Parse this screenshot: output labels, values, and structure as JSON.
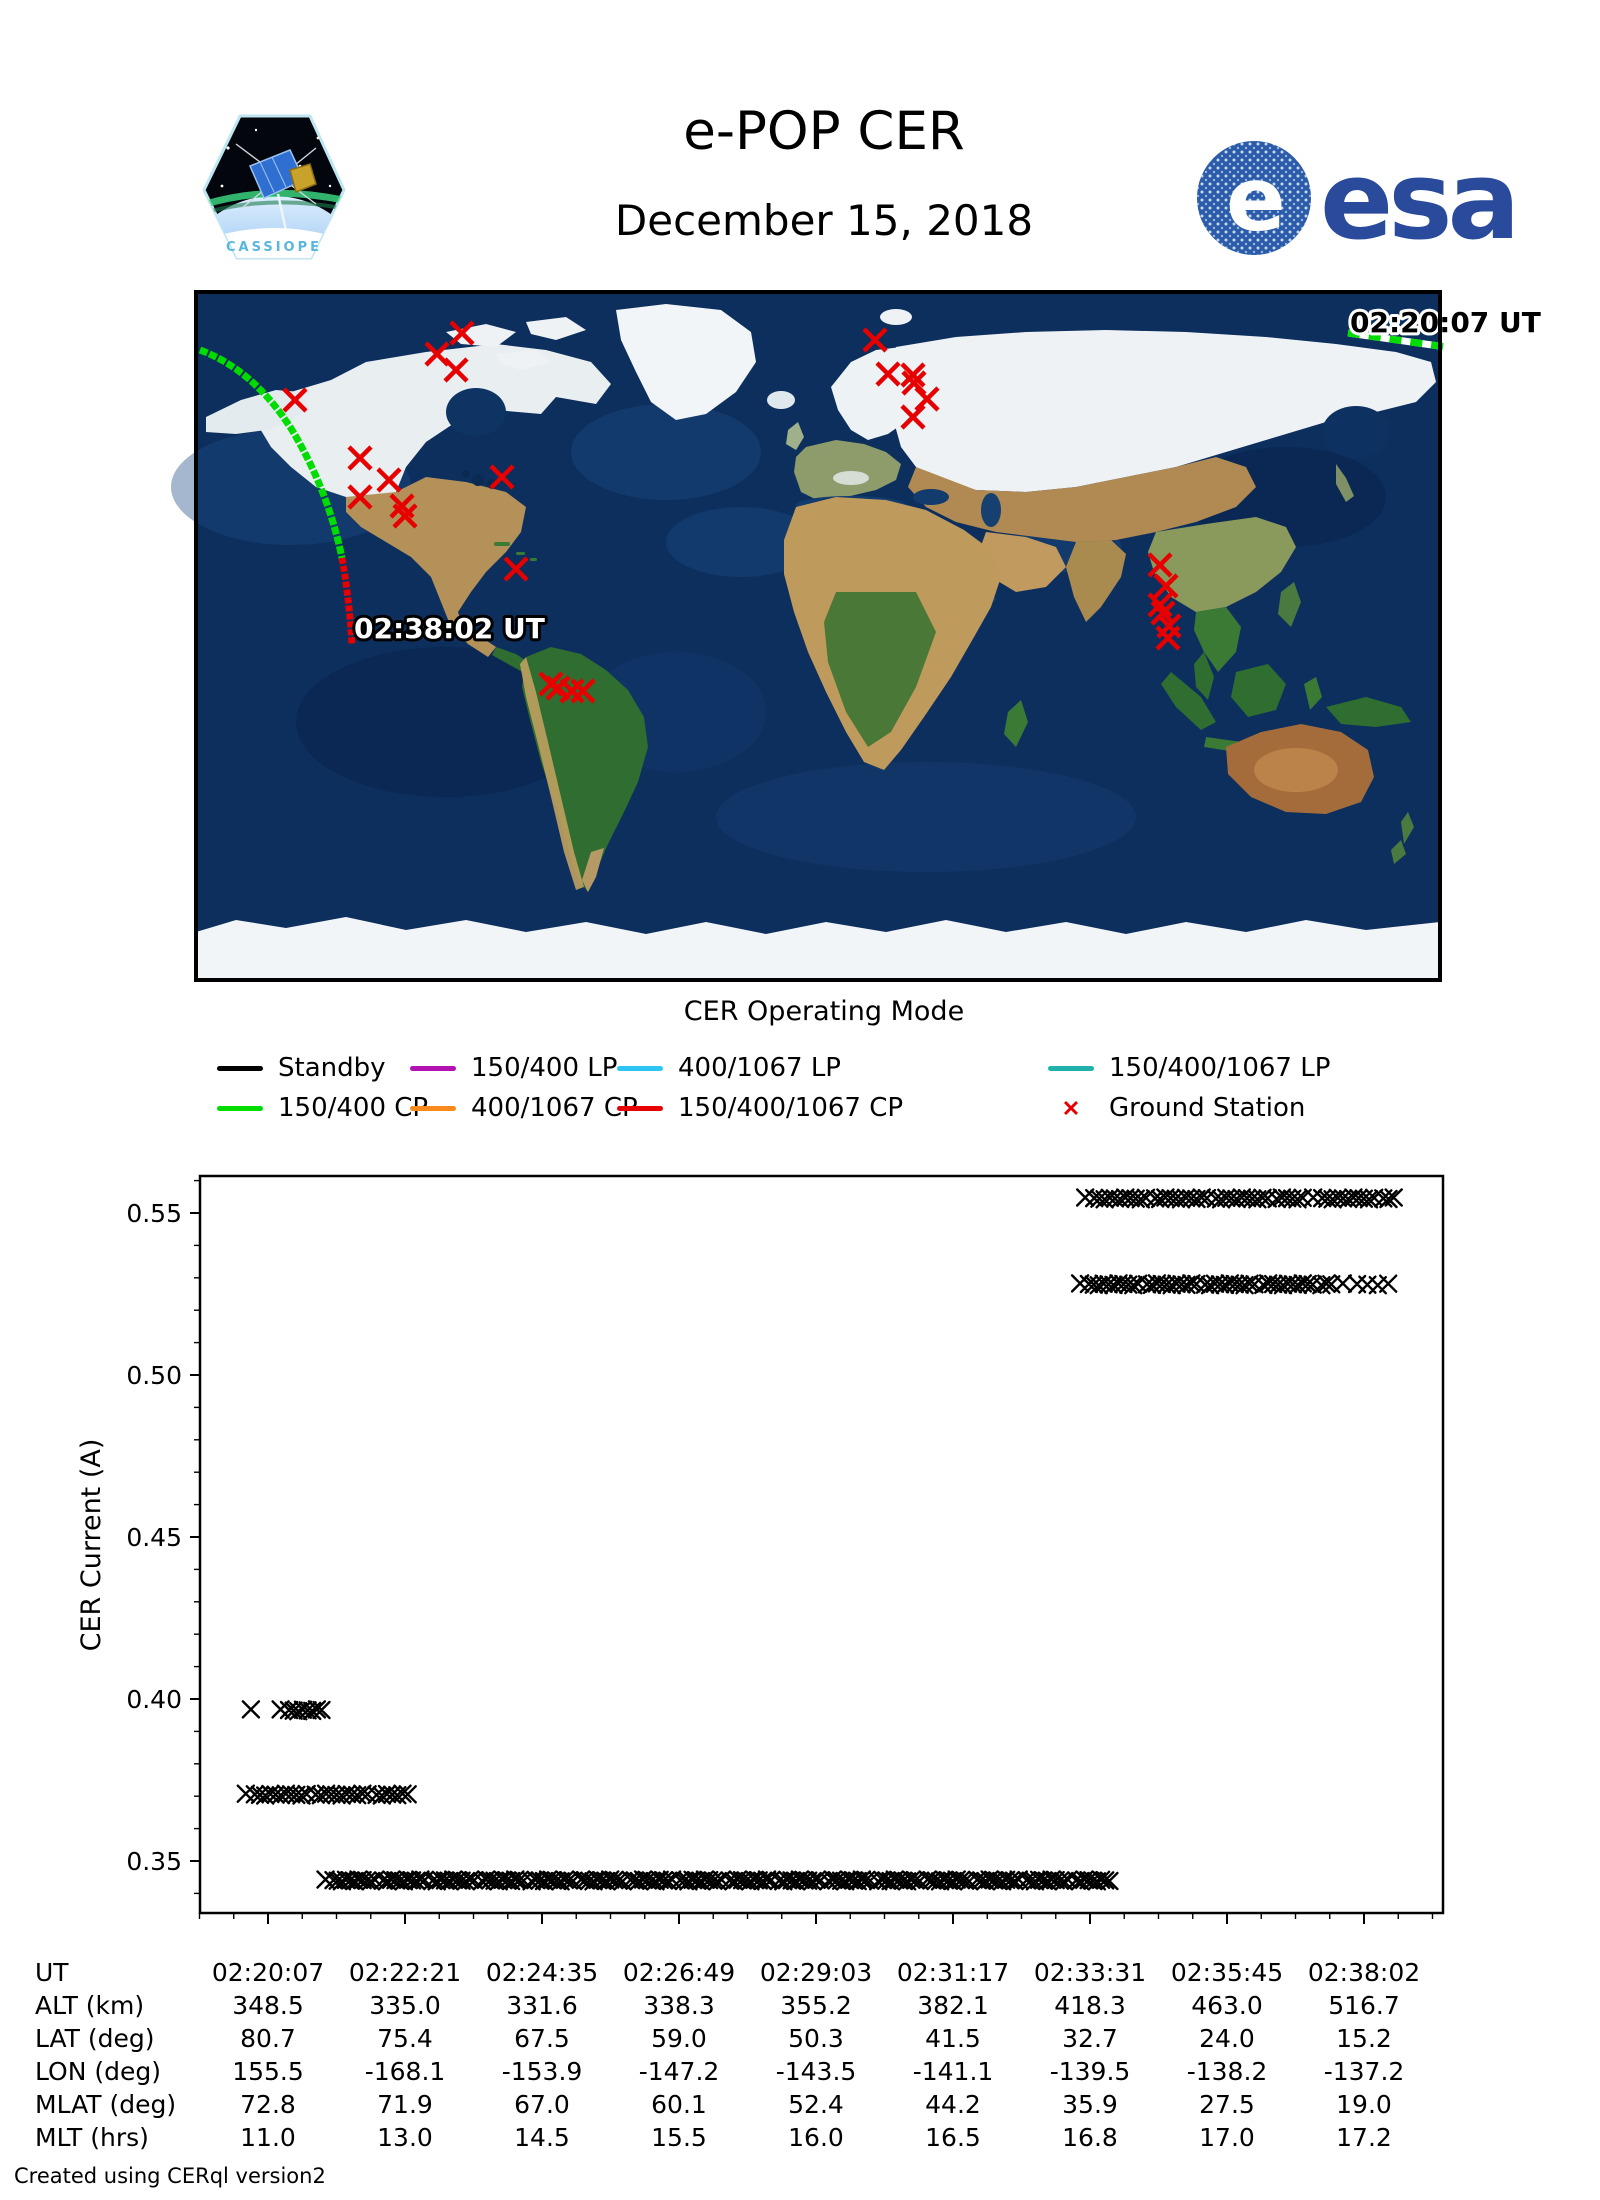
{
  "header": {
    "title": "e-POP CER",
    "date": "December 15, 2018",
    "cassiope_label": "CASSIOPE",
    "esa_wordmark": "esa"
  },
  "map": {
    "track_start_label": "02:20:07 UT",
    "track_end_label": "02:38:02 UT",
    "station_color": "#e60000",
    "track_colors": {
      "pass_150_400_cp": "#00dc00",
      "pass_150_400_1067_cp": "#e60000"
    },
    "ground_stations": [
      [
        266,
        41
      ],
      [
        241,
        62
      ],
      [
        260,
        78
      ],
      [
        99,
        108
      ],
      [
        164,
        166
      ],
      [
        193,
        188
      ],
      [
        164,
        205
      ],
      [
        206,
        214
      ],
      [
        209,
        224
      ],
      [
        306,
        185
      ],
      [
        320,
        277
      ],
      [
        355,
        392
      ],
      [
        362,
        396
      ],
      [
        376,
        399
      ],
      [
        387,
        399
      ],
      [
        679,
        48
      ],
      [
        692,
        82
      ],
      [
        717,
        83
      ],
      [
        718,
        91
      ],
      [
        731,
        107
      ],
      [
        717,
        125
      ],
      [
        964,
        273
      ],
      [
        970,
        294
      ],
      [
        964,
        313
      ],
      [
        967,
        321
      ],
      [
        973,
        334
      ],
      [
        972,
        346
      ]
    ]
  },
  "legend": {
    "title": "CER Operating Mode",
    "items": [
      {
        "label": "Standby",
        "color": "#000000",
        "type": "line"
      },
      {
        "label": "150/400 LP",
        "color": "#b312b3",
        "type": "line"
      },
      {
        "label": "400/1067 LP",
        "color": "#2ec5f5",
        "type": "line"
      },
      {
        "label": "150/400/1067 LP",
        "color": "#20b2aa",
        "type": "line"
      },
      {
        "label": "150/400 CP",
        "color": "#00dc00",
        "type": "line"
      },
      {
        "label": "400/1067 CP",
        "color": "#f98b1d",
        "type": "line"
      },
      {
        "label": "150/400/1067 CP",
        "color": "#e60000",
        "type": "line"
      },
      {
        "label": "Ground Station",
        "color": "#e60000",
        "type": "marker"
      }
    ]
  },
  "chart_data": {
    "type": "scatter",
    "marker": "x",
    "marker_color": "#000000",
    "title": "",
    "xlabel": "",
    "ylabel": "CER Current (A)",
    "ylim": [
      0.3335,
      0.5615
    ],
    "yticks": [
      0.35,
      0.4,
      0.45,
      0.5,
      0.55
    ],
    "x_tick_labels": [
      "02:20:07",
      "02:22:21",
      "02:24:35",
      "02:26:49",
      "02:29:03",
      "02:31:17",
      "02:33:31",
      "02:35:45",
      "02:38:02"
    ],
    "x_tick_interval_seconds": 134,
    "grid": false,
    "legend_position": "above-figure",
    "segments": [
      {
        "y": 0.3965,
        "t0": -15,
        "t1": -15,
        "count": 1
      },
      {
        "y": 0.3965,
        "t0": 14,
        "t1": 53,
        "count": 9
      },
      {
        "y": 0.3705,
        "t0": -20,
        "t1": 137,
        "count": 30
      },
      {
        "y": 0.344,
        "t0": 58,
        "t1": 824,
        "count": 175
      },
      {
        "y": 0.528,
        "t0": 796,
        "t1": 1039,
        "count": 48
      },
      {
        "y": 0.528,
        "t0": 1053,
        "t1": 1095,
        "count": 5
      },
      {
        "y": 0.5545,
        "t0": 801,
        "t1": 1012,
        "count": 40
      },
      {
        "y": 0.5545,
        "t0": 1024,
        "t1": 1100,
        "count": 15
      }
    ]
  },
  "table": {
    "row_labels": [
      "UT",
      "ALT (km)",
      "LAT (deg)",
      "LON (deg)",
      "MLAT (deg)",
      "MLT (hrs)"
    ],
    "rows": [
      [
        "02:20:07",
        "02:22:21",
        "02:24:35",
        "02:26:49",
        "02:29:03",
        "02:31:17",
        "02:33:31",
        "02:35:45",
        "02:38:02"
      ],
      [
        "348.5",
        "335.0",
        "331.6",
        "338.3",
        "355.2",
        "382.1",
        "418.3",
        "463.0",
        "516.7"
      ],
      [
        "80.7",
        "75.4",
        "67.5",
        "59.0",
        "50.3",
        "41.5",
        "32.7",
        "24.0",
        "15.2"
      ],
      [
        "155.5",
        "-168.1",
        "-153.9",
        "-147.2",
        "-143.5",
        "-141.1",
        "-139.5",
        "-138.2",
        "-137.2"
      ],
      [
        "72.8",
        "71.9",
        "67.0",
        "60.1",
        "52.4",
        "44.2",
        "35.9",
        "27.5",
        "19.0"
      ],
      [
        "11.0",
        "13.0",
        "14.5",
        "15.5",
        "16.0",
        "16.5",
        "16.8",
        "17.0",
        "17.2"
      ]
    ]
  },
  "footer": "Created using CERql version2"
}
